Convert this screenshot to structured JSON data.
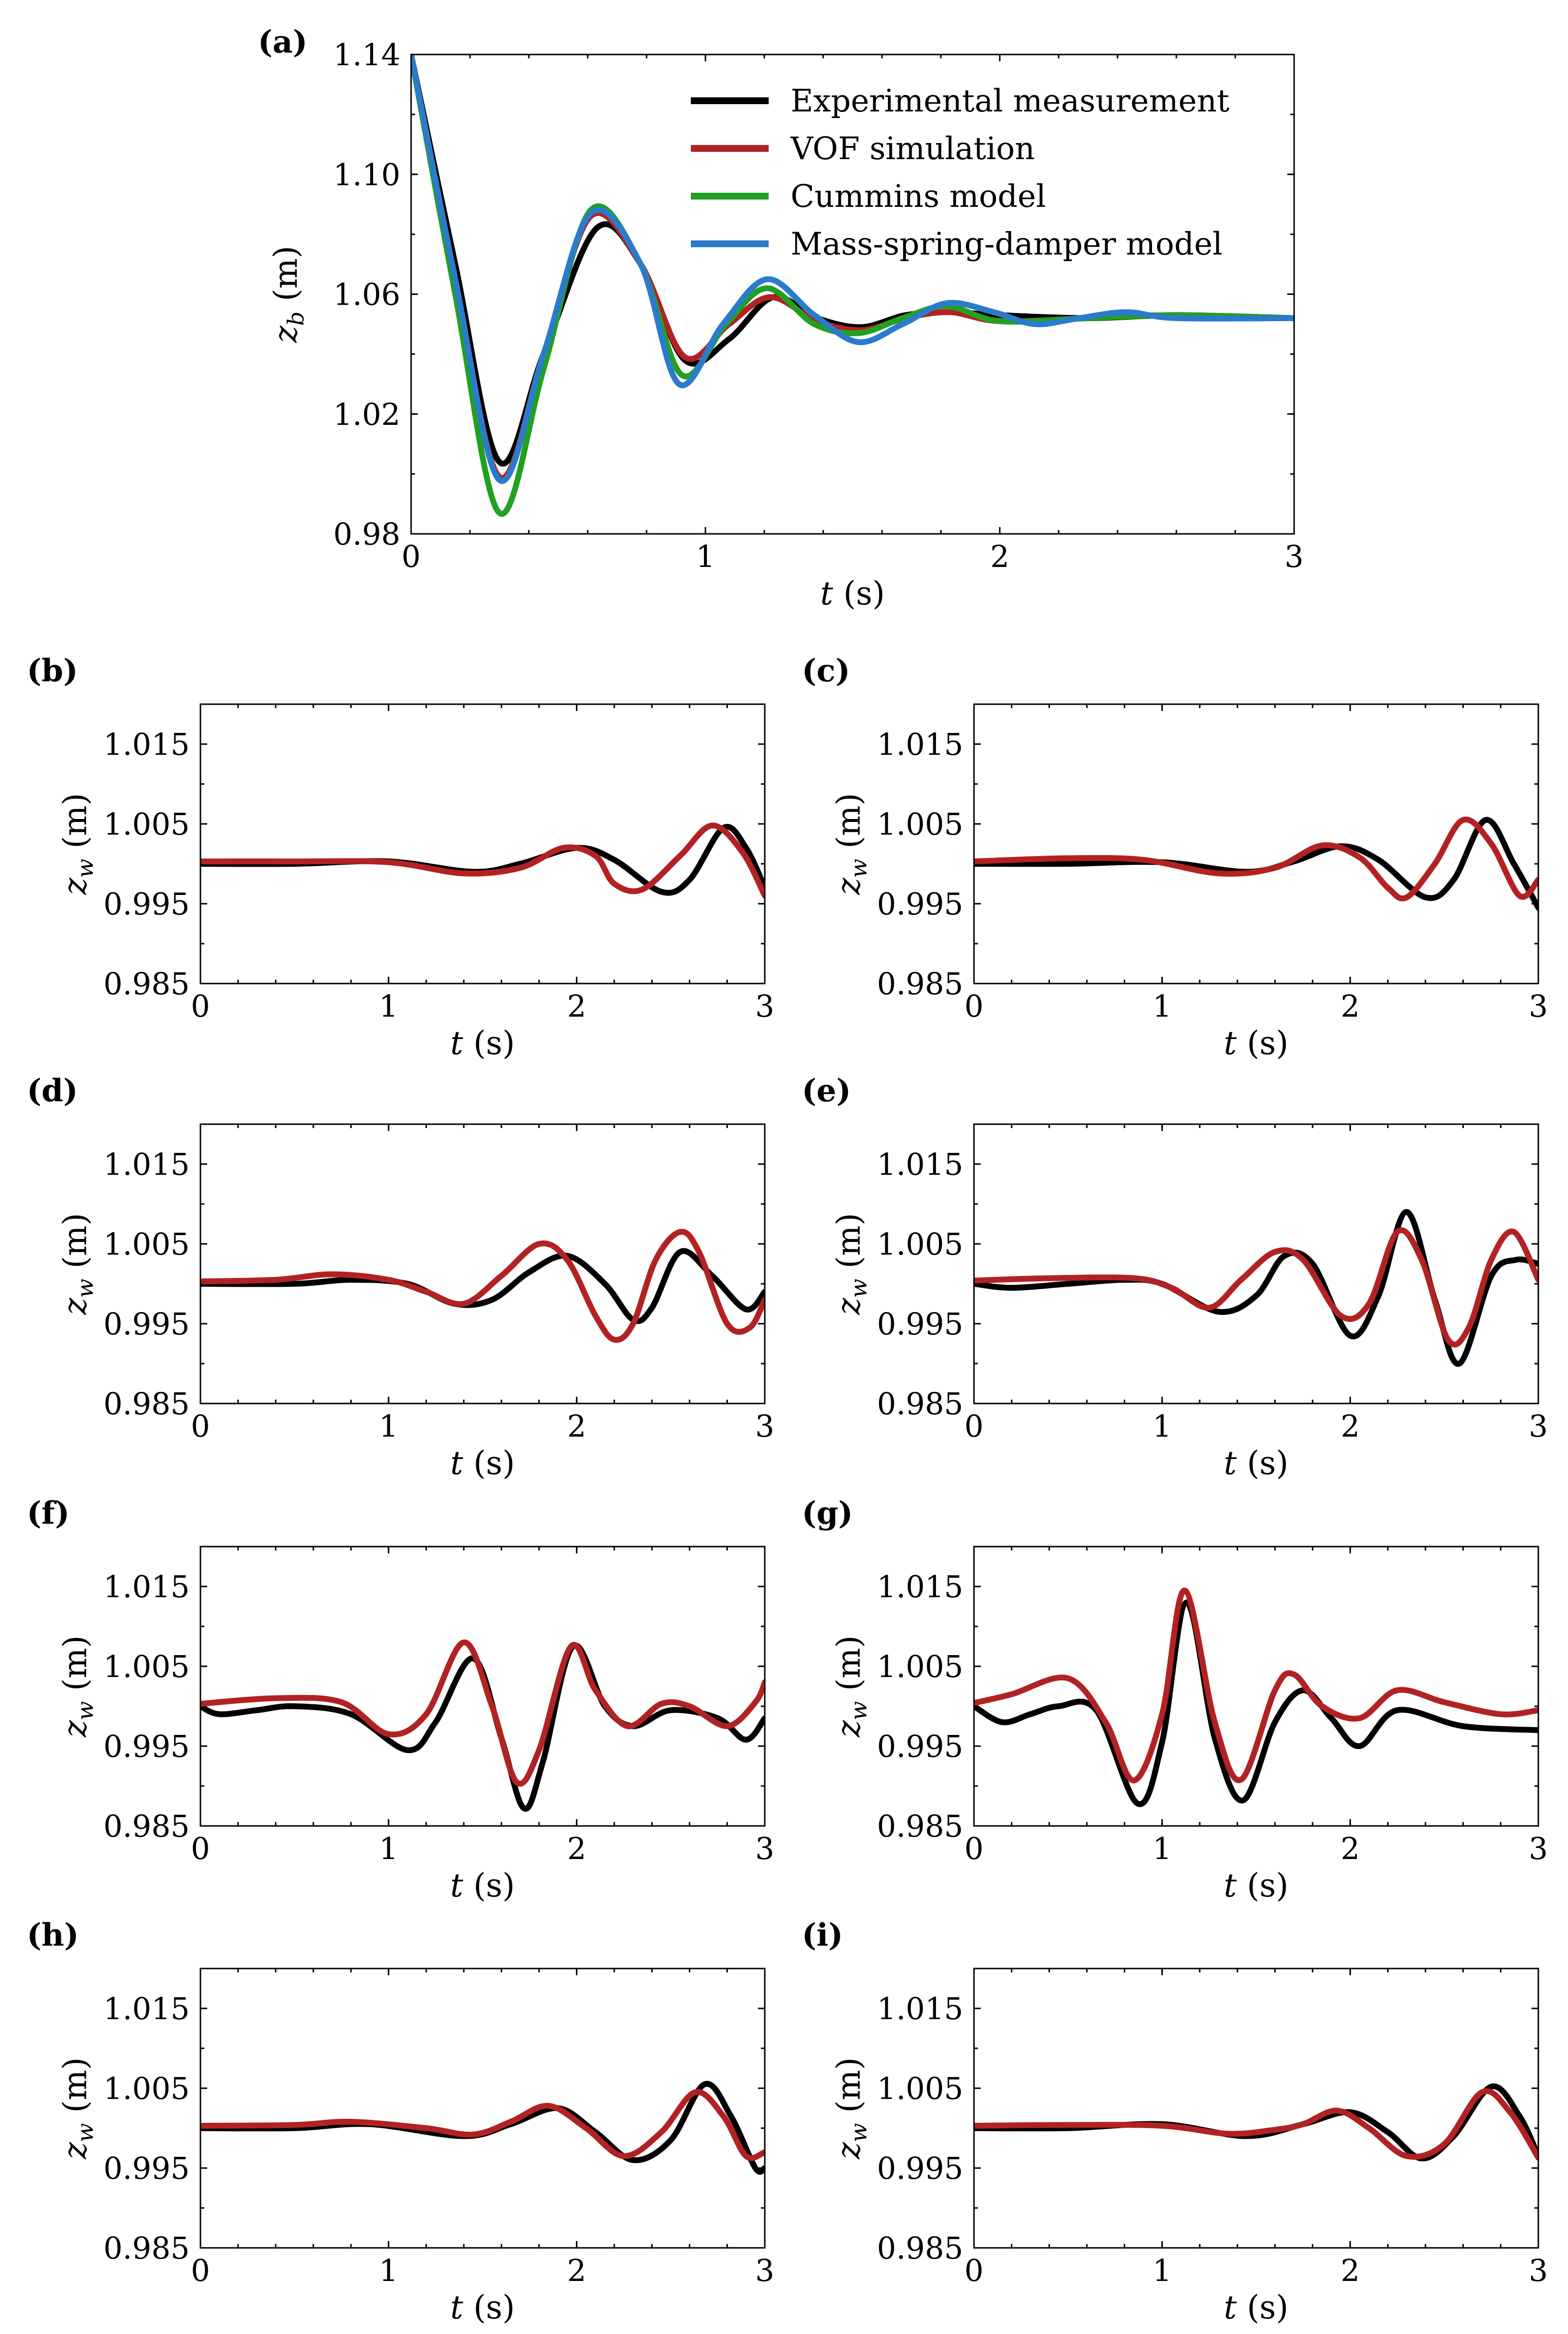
{
  "chart_data": [
    {
      "panel": "(a)",
      "type": "line",
      "title": "",
      "xlabel": "t (s)",
      "ylabel": "z_b (m)",
      "xlim": [
        0,
        3
      ],
      "ylim": [
        0.98,
        1.14
      ],
      "xticks": [
        "0",
        "1",
        "2",
        "3"
      ],
      "yticks": [
        "0.98",
        "1.02",
        "1.06",
        "1.10",
        "1.14"
      ],
      "legend_position": "top-right",
      "series": [
        {
          "name": "Experimental measurement",
          "color": "#000000",
          "x": [
            0,
            0.15,
            0.3,
            0.45,
            0.63,
            0.78,
            0.93,
            1.08,
            1.23,
            1.38,
            1.53,
            1.68,
            1.83,
            2.0,
            2.3,
            2.6,
            3.0
          ],
          "y": [
            1.14,
            1.07,
            1.004,
            1.04,
            1.082,
            1.07,
            1.038,
            1.045,
            1.059,
            1.052,
            1.049,
            1.053,
            1.054,
            1.053,
            1.052,
            1.053,
            1.052
          ]
        },
        {
          "name": "VOF simulation",
          "color": "#b22222",
          "x": [
            0,
            0.15,
            0.3,
            0.45,
            0.61,
            0.78,
            0.93,
            1.08,
            1.22,
            1.38,
            1.53,
            1.68,
            1.83,
            2.0,
            2.3,
            2.6,
            3.0
          ],
          "y": [
            1.14,
            1.065,
            0.999,
            1.04,
            1.086,
            1.07,
            1.039,
            1.05,
            1.059,
            1.051,
            1.048,
            1.052,
            1.054,
            1.051,
            1.052,
            1.053,
            1.052
          ]
        },
        {
          "name": "Cummins model",
          "color": "#22a022",
          "x": [
            0,
            0.15,
            0.3,
            0.45,
            0.61,
            0.78,
            0.92,
            1.07,
            1.21,
            1.37,
            1.52,
            1.67,
            1.82,
            2.0,
            2.3,
            2.6,
            3.0
          ],
          "y": [
            1.14,
            1.06,
            0.987,
            1.035,
            1.088,
            1.07,
            1.033,
            1.05,
            1.062,
            1.05,
            1.047,
            1.052,
            1.056,
            1.051,
            1.052,
            1.053,
            1.052
          ]
        },
        {
          "name": "Mass-spring-damper model",
          "color": "#2b7bcb",
          "x": [
            0,
            0.15,
            0.3,
            0.45,
            0.61,
            0.78,
            0.91,
            1.06,
            1.21,
            1.37,
            1.52,
            1.67,
            1.82,
            1.98,
            2.12,
            2.27,
            2.43,
            2.6,
            3.0
          ],
          "y": [
            1.14,
            1.065,
            0.998,
            1.04,
            1.087,
            1.07,
            1.03,
            1.05,
            1.065,
            1.053,
            1.044,
            1.05,
            1.057,
            1.054,
            1.05,
            1.052,
            1.054,
            1.052,
            1.052
          ]
        }
      ]
    },
    {
      "panel": "(b)",
      "type": "line",
      "xlabel": "t (s)",
      "ylabel": "z_w (m)",
      "xlim": [
        0,
        3
      ],
      "ylim": [
        0.985,
        1.02
      ],
      "xticks": [
        "0",
        "1",
        "2",
        "3"
      ],
      "yticks": [
        "0.985",
        "0.995",
        "1.005",
        "1.015"
      ],
      "series": [
        {
          "name": "Experimental measurement",
          "color": "#000000",
          "x": [
            0,
            0.5,
            1.0,
            1.45,
            1.7,
            2.0,
            2.2,
            2.45,
            2.6,
            2.78,
            2.9,
            3.0
          ],
          "y": [
            1.0,
            1.0,
            1.0003,
            0.999,
            1.0,
            1.002,
            1.0005,
            0.9965,
            0.998,
            1.0045,
            1.002,
            0.997
          ]
        },
        {
          "name": "VOF simulation",
          "color": "#b22222",
          "x": [
            0,
            0.5,
            1.0,
            1.4,
            1.7,
            1.93,
            2.1,
            2.2,
            2.35,
            2.55,
            2.72,
            2.88,
            3.0
          ],
          "y": [
            1.0003,
            1.0003,
            1.0002,
            0.9988,
            0.9995,
            1.002,
            1.001,
            0.9975,
            0.9968,
            1.001,
            1.0048,
            1.0015,
            0.996
          ]
        }
      ]
    },
    {
      "panel": "(c)",
      "type": "line",
      "xlabel": "t (s)",
      "ylabel": "z_w (m)",
      "xlim": [
        0,
        3
      ],
      "ylim": [
        0.985,
        1.02
      ],
      "xticks": [
        "0",
        "1",
        "2",
        "3"
      ],
      "yticks": [
        "0.985",
        "0.995",
        "1.005",
        "1.015"
      ],
      "series": [
        {
          "name": "Experimental measurement",
          "color": "#000000",
          "x": [
            0,
            0.5,
            1.0,
            1.45,
            1.7,
            1.95,
            2.15,
            2.4,
            2.55,
            2.72,
            2.87,
            3.0
          ],
          "y": [
            1.0,
            1.0,
            1.0002,
            0.999,
            1.0003,
            1.0022,
            1.0005,
            0.9958,
            0.998,
            1.0055,
            1.0,
            0.9945
          ]
        },
        {
          "name": "VOF simulation",
          "color": "#b22222",
          "x": [
            0,
            0.5,
            0.9,
            1.3,
            1.6,
            1.85,
            2.05,
            2.2,
            2.3,
            2.45,
            2.6,
            2.75,
            2.9,
            3.0
          ],
          "y": [
            1.0003,
            1.0007,
            1.0005,
            0.9988,
            0.9995,
            1.0023,
            1.0008,
            0.997,
            0.9958,
            1.0,
            1.0055,
            1.0025,
            0.996,
            0.998
          ]
        }
      ]
    },
    {
      "panel": "(d)",
      "type": "line",
      "xlabel": "t (s)",
      "ylabel": "z_w (m)",
      "xlim": [
        0,
        3
      ],
      "ylim": [
        0.985,
        1.02
      ],
      "xticks": [
        "0",
        "1",
        "2",
        "3"
      ],
      "yticks": [
        "0.985",
        "0.995",
        "1.005",
        "1.015"
      ],
      "series": [
        {
          "name": "Experimental measurement",
          "color": "#000000",
          "x": [
            0,
            0.5,
            0.8,
            1.1,
            1.35,
            1.55,
            1.75,
            1.95,
            2.15,
            2.3,
            2.4,
            2.55,
            2.72,
            2.9,
            3.0
          ],
          "y": [
            1.0,
            1.0,
            1.0005,
            1.0,
            0.9975,
            0.998,
            1.0015,
            1.0035,
            1.0,
            0.9955,
            0.997,
            1.004,
            1.001,
            0.9968,
            0.999
          ]
        },
        {
          "name": "VOF simulation",
          "color": "#b22222",
          "x": [
            0,
            0.4,
            0.7,
            1.0,
            1.2,
            1.4,
            1.6,
            1.8,
            1.95,
            2.1,
            2.2,
            2.3,
            2.42,
            2.55,
            2.65,
            2.8,
            2.92,
            3.0
          ],
          "y": [
            1.0003,
            1.0005,
            1.0012,
            1.0005,
            0.999,
            0.9975,
            1.001,
            1.005,
            1.003,
            0.996,
            0.993,
            0.995,
            1.003,
            1.0065,
            1.004,
            0.995,
            0.9945,
            0.998
          ]
        }
      ]
    },
    {
      "panel": "(e)",
      "type": "line",
      "xlabel": "t (s)",
      "ylabel": "z_w (m)",
      "xlim": [
        0,
        3
      ],
      "ylim": [
        0.985,
        1.02
      ],
      "xticks": [
        "0",
        "1",
        "2",
        "3"
      ],
      "yticks": [
        "0.985",
        "0.995",
        "1.005",
        "1.015"
      ],
      "series": [
        {
          "name": "Experimental measurement",
          "color": "#000000",
          "x": [
            0,
            0.2,
            0.5,
            0.8,
            1.0,
            1.3,
            1.5,
            1.65,
            1.8,
            2.0,
            2.15,
            2.3,
            2.45,
            2.58,
            2.75,
            2.88,
            3.0
          ],
          "y": [
            1.0,
            0.9995,
            1.0,
            1.0005,
            1.0,
            0.9965,
            0.9985,
            1.0035,
            1.0025,
            0.9935,
            0.9985,
            1.009,
            0.998,
            0.99,
            1.001,
            1.003,
            1.0025
          ]
        },
        {
          "name": "VOF simulation",
          "color": "#b22222",
          "x": [
            0,
            0.4,
            0.85,
            1.05,
            1.25,
            1.42,
            1.6,
            1.75,
            1.95,
            2.1,
            2.25,
            2.38,
            2.52,
            2.63,
            2.75,
            2.87,
            3.0
          ],
          "y": [
            1.0004,
            1.0007,
            1.0007,
            0.9995,
            0.997,
            1.0005,
            1.004,
            1.003,
            0.996,
            0.9975,
            1.0065,
            1.003,
            0.993,
            0.9945,
            1.003,
            1.0065,
            1.0005
          ]
        }
      ]
    },
    {
      "panel": "(f)",
      "type": "line",
      "xlabel": "t (s)",
      "ylabel": "z_w (m)",
      "xlim": [
        0,
        3
      ],
      "ylim": [
        0.985,
        1.02
      ],
      "xticks": [
        "0",
        "1",
        "2",
        "3"
      ],
      "yticks": [
        "0.985",
        "0.995",
        "1.005",
        "1.015"
      ],
      "series": [
        {
          "name": "Experimental measurement",
          "color": "#000000",
          "x": [
            0,
            0.1,
            0.3,
            0.5,
            0.8,
            1.1,
            1.25,
            1.45,
            1.6,
            1.72,
            1.82,
            1.98,
            2.15,
            2.3,
            2.5,
            2.75,
            2.9,
            3.0
          ],
          "y": [
            1.0,
            0.999,
            0.9995,
            1.0,
            0.999,
            0.9945,
            0.998,
            1.006,
            0.996,
            0.9872,
            0.993,
            1.0075,
            1.0,
            0.9975,
            0.9995,
            0.9985,
            0.9958,
            0.9985
          ]
        },
        {
          "name": "VOF simulation",
          "color": "#b22222",
          "x": [
            0,
            0.4,
            0.75,
            1.0,
            1.2,
            1.4,
            1.55,
            1.68,
            1.8,
            1.97,
            2.1,
            2.27,
            2.45,
            2.6,
            2.8,
            2.95,
            3.0
          ],
          "y": [
            1.0003,
            1.001,
            1.0005,
            0.9965,
            0.999,
            1.008,
            1.0,
            0.9905,
            0.9945,
            1.0075,
            1.002,
            0.9975,
            1.0003,
            1.0,
            0.9975,
            1.0005,
            1.003
          ]
        }
      ]
    },
    {
      "panel": "(g)",
      "type": "line",
      "xlabel": "t (s)",
      "ylabel": "z_w (m)",
      "xlim": [
        0,
        3
      ],
      "ylim": [
        0.985,
        1.02
      ],
      "xticks": [
        "0",
        "1",
        "2",
        "3"
      ],
      "yticks": [
        "0.985",
        "0.995",
        "1.005",
        "1.015"
      ],
      "series": [
        {
          "name": "Experimental measurement",
          "color": "#000000",
          "x": [
            0,
            0.15,
            0.3,
            0.45,
            0.65,
            0.87,
            1.0,
            1.13,
            1.28,
            1.43,
            1.6,
            1.75,
            1.9,
            2.05,
            2.25,
            2.6,
            3.0
          ],
          "y": [
            1.0,
            0.998,
            0.999,
            1.0,
            0.9995,
            0.9878,
            0.9955,
            1.013,
            0.996,
            0.9882,
            0.998,
            1.002,
            0.9985,
            0.995,
            0.9995,
            0.9975,
            0.997
          ]
        },
        {
          "name": "VOF simulation",
          "color": "#b22222",
          "x": [
            0,
            0.2,
            0.5,
            0.7,
            0.85,
            1.0,
            1.12,
            1.28,
            1.42,
            1.6,
            1.7,
            1.85,
            2.05,
            2.25,
            2.5,
            2.8,
            3.0
          ],
          "y": [
            1.0004,
            1.0015,
            1.0035,
            0.998,
            0.9907,
            0.999,
            1.0145,
            0.998,
            0.9908,
            1.002,
            1.004,
            1.0,
            0.9985,
            1.002,
            1.0005,
            0.999,
            0.9995
          ]
        }
      ]
    },
    {
      "panel": "(h)",
      "type": "line",
      "xlabel": "t (s)",
      "ylabel": "z_w (m)",
      "xlim": [
        0,
        3
      ],
      "ylim": [
        0.985,
        1.02
      ],
      "xticks": [
        "0",
        "1",
        "2",
        "3"
      ],
      "yticks": [
        "0.985",
        "0.995",
        "1.005",
        "1.015"
      ],
      "series": [
        {
          "name": "Experimental measurement",
          "color": "#000000",
          "x": [
            0,
            0.5,
            0.9,
            1.4,
            1.65,
            1.9,
            2.1,
            2.3,
            2.5,
            2.68,
            2.82,
            2.95,
            3.0
          ],
          "y": [
            1.0,
            1.0,
            1.0005,
            0.999,
            1.0005,
            1.0025,
            0.9995,
            0.996,
            0.9985,
            1.0055,
            1.0015,
            0.995,
            0.995
          ]
        },
        {
          "name": "VOF simulation",
          "color": "#b22222",
          "x": [
            0,
            0.5,
            0.8,
            1.2,
            1.45,
            1.65,
            1.85,
            2.05,
            2.25,
            2.45,
            2.63,
            2.78,
            2.9,
            3.0
          ],
          "y": [
            1.0003,
            1.0004,
            1.0008,
            1.0,
            0.9992,
            1.0008,
            1.0028,
            1.0,
            0.9965,
            0.9995,
            1.0045,
            1.0015,
            0.9965,
            0.997
          ]
        }
      ]
    },
    {
      "panel": "(i)",
      "type": "line",
      "xlabel": "t (s)",
      "ylabel": "z_w (m)",
      "xlim": [
        0,
        3
      ],
      "ylim": [
        0.985,
        1.02
      ],
      "xticks": [
        "0",
        "1",
        "2",
        "3"
      ],
      "yticks": [
        "0.985",
        "0.995",
        "1.005",
        "1.015"
      ],
      "series": [
        {
          "name": "Experimental measurement",
          "color": "#000000",
          "x": [
            0,
            0.5,
            1.0,
            1.45,
            1.75,
            2.0,
            2.2,
            2.38,
            2.55,
            2.75,
            2.9,
            3.0
          ],
          "y": [
            1.0,
            1.0,
            1.0005,
            0.999,
            1.0005,
            1.002,
            0.9995,
            0.9962,
            0.999,
            1.0052,
            1.0015,
            0.9965
          ]
        },
        {
          "name": "VOF simulation",
          "color": "#b22222",
          "x": [
            0,
            0.5,
            1.0,
            1.35,
            1.6,
            1.75,
            1.93,
            2.1,
            2.3,
            2.5,
            2.7,
            2.85,
            3.0
          ],
          "y": [
            1.0003,
            1.0004,
            1.0003,
            0.9993,
            0.9998,
            1.0005,
            1.0022,
            1.0,
            0.9965,
            0.998,
            1.0045,
            1.002,
            0.9963
          ]
        }
      ]
    }
  ]
}
